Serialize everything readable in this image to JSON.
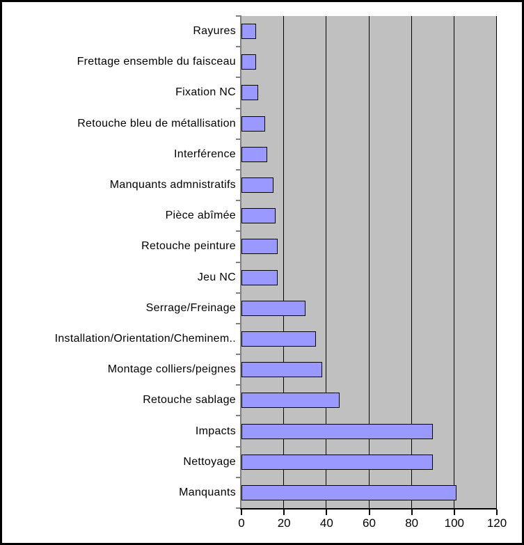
{
  "chart_data": {
    "type": "bar",
    "orientation": "horizontal",
    "title": "",
    "xlabel": "",
    "ylabel": "",
    "legend": "none",
    "grid": "vertical-major",
    "xlim": [
      0,
      120
    ],
    "xticks": [
      0,
      20,
      40,
      60,
      80,
      100,
      120
    ],
    "categories": [
      "Rayures",
      "Frettage ensemble du faisceau",
      "Fixation NC",
      "Retouche bleu de métallisation",
      "Interférence",
      "Manquants admnistratifs",
      "Pièce abîmée",
      "Retouche peinture",
      "Jeu NC",
      "Serrage/Freinage",
      "Installation/Orientation/Cheminem..",
      "Montage colliers/peignes",
      "Retouche sablage",
      "Impacts",
      "Nettoyage",
      "Manquants"
    ],
    "values": [
      7,
      7,
      8,
      11,
      12,
      15,
      16,
      17,
      17,
      30,
      35,
      38,
      46,
      90,
      90,
      101
    ],
    "colors": {
      "bar_fill": "#9999ff",
      "bar_border": "#000000",
      "plot_bg": "#c0c0c0",
      "gridline": "#000000",
      "y_axis": "#808080",
      "x_axis": "#000000",
      "text": "#000000",
      "page_bg": "#ffffff",
      "frame_border": "#000000"
    }
  }
}
